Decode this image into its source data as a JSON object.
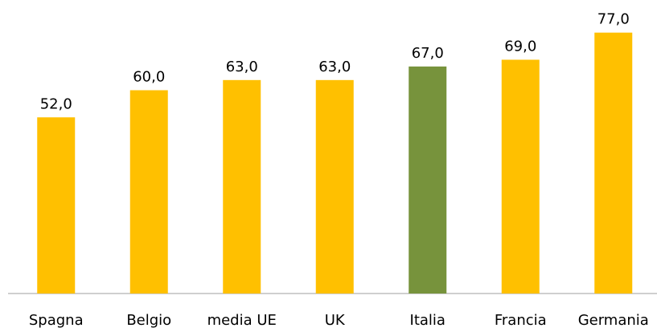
{
  "chart_data": {
    "type": "bar",
    "categories": [
      "Spagna",
      "Belgio",
      "media UE",
      "UK",
      "Italia",
      "Francia",
      "Germania"
    ],
    "values": [
      52,
      60,
      63,
      63,
      67,
      69,
      77
    ],
    "value_labels": [
      "52,0",
      "60,0",
      "63,0",
      "63,0",
      "67,0",
      "69,0",
      "77,0"
    ],
    "colors": [
      "#ffc000",
      "#ffc000",
      "#ffc000",
      "#ffc000",
      "#77933c",
      "#ffc000",
      "#ffc000"
    ],
    "ylim": [
      0,
      80
    ]
  }
}
